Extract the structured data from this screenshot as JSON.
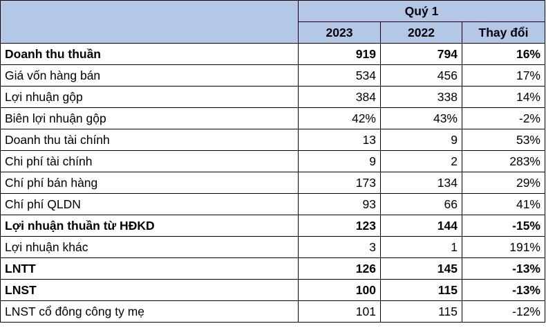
{
  "header": {
    "period": "Quý 1",
    "columns": [
      "2023",
      "2022",
      "Thay đổi"
    ]
  },
  "rows": [
    {
      "label": "Doanh thu thuần",
      "v2023": "919",
      "v2022": "794",
      "change": "16%",
      "bold": true
    },
    {
      "label": "Giá vốn hàng bán",
      "v2023": "534",
      "v2022": "456",
      "change": "17%",
      "bold": false
    },
    {
      "label": "Lợi nhuận gộp",
      "v2023": "384",
      "v2022": "338",
      "change": "14%",
      "bold": false
    },
    {
      "label": "Biên lợi nhuận gộp",
      "v2023": "42%",
      "v2022": "43%",
      "change": "-2%",
      "bold": false
    },
    {
      "label": "Doanh thu tài chính",
      "v2023": "13",
      "v2022": "9",
      "change": "53%",
      "bold": false
    },
    {
      "label": "Chi phí tài chính",
      "v2023": "9",
      "v2022": "2",
      "change": "283%",
      "bold": false
    },
    {
      "label": "Chí phí bán hàng",
      "v2023": "173",
      "v2022": "134",
      "change": "29%",
      "bold": false
    },
    {
      "label": "Chí phí QLDN",
      "v2023": "93",
      "v2022": "66",
      "change": "41%",
      "bold": false
    },
    {
      "label": "Lợi nhuận thuần từ HĐKD",
      "v2023": "123",
      "v2022": "144",
      "change": "-15%",
      "bold": true
    },
    {
      "label": "Lợi nhuận khác",
      "v2023": "3",
      "v2022": "1",
      "change": "191%",
      "bold": false
    },
    {
      "label": "LNTT",
      "v2023": "126",
      "v2022": "145",
      "change": "-13%",
      "bold": true
    },
    {
      "label": "LNST",
      "v2023": "100",
      "v2022": "115",
      "change": "-13%",
      "bold": true
    },
    {
      "label": "LNST cổ đông công ty mẹ",
      "v2023": "101",
      "v2022": "115",
      "change": "-12%",
      "bold": false
    }
  ]
}
